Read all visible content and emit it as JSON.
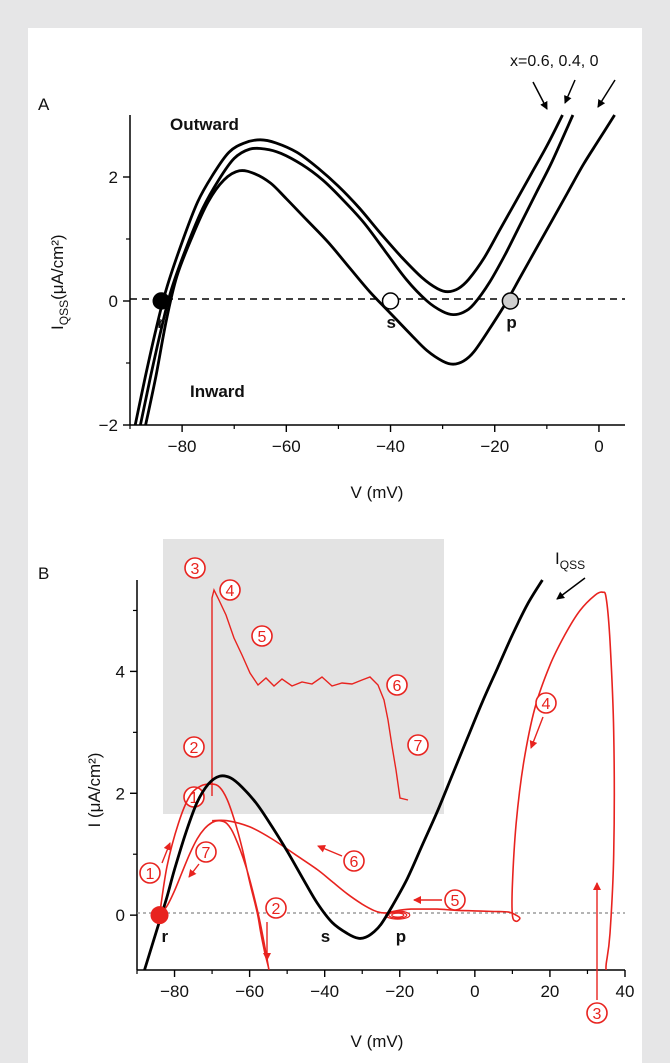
{
  "chart_data": [
    {
      "panel": "A",
      "type": "line",
      "xlabel": "V (mV)",
      "ylabel_main": "I",
      "ylabel_sub": "QSS",
      "ylabel_units": "(μA/cm²)",
      "xlim": [
        -90,
        5
      ],
      "ylim": [
        -2,
        3
      ],
      "x_ticks": [
        -80,
        -60,
        -40,
        -20,
        0
      ],
      "x_tick_labels": [
        "−80",
        "−60",
        "−40",
        "−20",
        "0"
      ],
      "y_ticks": [
        -2,
        0,
        2
      ],
      "y_tick_labels": [
        "−2",
        "0",
        "2"
      ],
      "legend_text": "x=0.6, 0.4, 0",
      "annotations": {
        "outward": "Outward",
        "inward": "Inward"
      },
      "series": [
        {
          "x": [
            -89,
            -87,
            -85,
            -83,
            -80,
            -77,
            -74,
            -71,
            -68,
            -65,
            -62,
            -58,
            -54,
            -50,
            -46,
            -42,
            -38,
            -34,
            -31,
            -29,
            -27,
            -25,
            -22,
            -19,
            -16,
            -13,
            -10,
            -7
          ],
          "y": [
            -2,
            -1.2,
            -0.45,
            0.2,
            0.95,
            1.6,
            2.05,
            2.4,
            2.55,
            2.6,
            2.55,
            2.4,
            2.15,
            1.85,
            1.5,
            1.1,
            0.72,
            0.38,
            0.2,
            0.15,
            0.2,
            0.35,
            0.7,
            1.15,
            1.6,
            2.05,
            2.5,
            3.0
          ]
        },
        {
          "x": [
            -88,
            -86,
            -84,
            -82,
            -79,
            -76,
            -73,
            -70,
            -67,
            -64,
            -61,
            -57,
            -53,
            -49,
            -45,
            -41,
            -37,
            -33,
            -30,
            -28,
            -26,
            -24,
            -21,
            -18,
            -15,
            -12,
            -9,
            -5
          ],
          "y": [
            -2,
            -1.2,
            -0.45,
            0.2,
            0.9,
            1.5,
            1.95,
            2.3,
            2.45,
            2.45,
            2.38,
            2.2,
            1.95,
            1.62,
            1.25,
            0.8,
            0.35,
            0.0,
            -0.17,
            -0.22,
            -0.18,
            -0.05,
            0.3,
            0.75,
            1.25,
            1.75,
            2.25,
            3.0
          ]
        },
        {
          "x": [
            -87,
            -85,
            -83,
            -81,
            -78,
            -75,
            -72,
            -69,
            -66,
            -63,
            -60,
            -56,
            -52,
            -48,
            -44,
            -40,
            -36,
            -33,
            -30,
            -28,
            -26,
            -24,
            -21,
            -18,
            -15,
            -12,
            -9,
            -6,
            -3,
            0,
            3
          ],
          "y": [
            -2,
            -1.2,
            -0.3,
            0.4,
            1.05,
            1.6,
            1.95,
            2.1,
            2.05,
            1.9,
            1.65,
            1.3,
            0.95,
            0.55,
            0.15,
            -0.2,
            -0.55,
            -0.8,
            -0.97,
            -1.02,
            -0.97,
            -0.82,
            -0.45,
            -0.05,
            0.4,
            0.85,
            1.3,
            1.75,
            2.2,
            2.6,
            3.0
          ]
        }
      ],
      "points": [
        {
          "label": "r",
          "x": -84,
          "y": 0,
          "fill": "#000000"
        },
        {
          "label": "s",
          "x": -40,
          "y": 0,
          "fill": "#ffffff"
        },
        {
          "label": "p",
          "x": -17,
          "y": 0,
          "fill": "#cfcfcf"
        }
      ]
    },
    {
      "panel": "B",
      "type": "line",
      "xlabel": "V (mV)",
      "ylabel": "I (μA/cm²)",
      "xlim": [
        -90,
        40
      ],
      "ylim": [
        -0.9,
        5.5
      ],
      "x_ticks": [
        -80,
        -60,
        -40,
        -20,
        0,
        20,
        40
      ],
      "x_tick_labels": [
        "−80",
        "−60",
        "−40",
        "−20",
        "0",
        "20",
        "40"
      ],
      "y_ticks": [
        0,
        2,
        4
      ],
      "y_tick_labels": [
        "0",
        "2",
        "4"
      ],
      "curve_label_main": "I",
      "curve_label_sub": "QSS",
      "iqss": {
        "x": [
          -88,
          -86,
          -84,
          -82,
          -80,
          -77,
          -74,
          -71,
          -68,
          -65,
          -62,
          -58,
          -54,
          -50,
          -46,
          -42,
          -38,
          -34,
          -31,
          -29,
          -27,
          -25,
          -22,
          -18,
          -14,
          -10,
          -6,
          -2,
          2,
          6,
          10,
          14,
          18
        ],
        "y": [
          -0.9,
          -0.5,
          -0.1,
          0.3,
          0.75,
          1.35,
          1.85,
          2.15,
          2.28,
          2.25,
          2.1,
          1.82,
          1.45,
          1.05,
          0.62,
          0.2,
          -0.12,
          -0.3,
          -0.38,
          -0.36,
          -0.28,
          -0.15,
          0.15,
          0.6,
          1.15,
          1.7,
          2.3,
          2.9,
          3.5,
          4.05,
          4.6,
          5.1,
          5.5
        ]
      },
      "trajectory": {
        "x": [
          -84,
          -82,
          -79,
          -76,
          -73,
          -70,
          -68,
          -66,
          -64,
          -62,
          -60,
          -58,
          -57,
          -56,
          -55,
          -55,
          -56,
          -58,
          -61,
          -64,
          -66,
          -68,
          -70,
          -72,
          -74,
          -76,
          -78,
          -80,
          -82,
          -84
        ],
        "y": [
          0,
          0.8,
          1.5,
          1.95,
          2.12,
          2.15,
          2.1,
          1.9,
          1.55,
          1.1,
          0.55,
          0.05,
          -0.3,
          -0.6,
          -0.85,
          -0.85,
          -0.5,
          0.1,
          0.8,
          1.3,
          1.5,
          1.55,
          1.52,
          1.42,
          1.25,
          1.0,
          0.7,
          0.4,
          0.15,
          0
        ]
      },
      "trajectory2": {
        "x": [
          -70,
          -66,
          -60,
          -54,
          -48,
          -42,
          -38,
          -34,
          -30,
          -27,
          -25,
          -23,
          -21,
          -19,
          -17,
          -15,
          -10,
          -5,
          0,
          5,
          9,
          11,
          12,
          11,
          10,
          10,
          11,
          13,
          16,
          20,
          24,
          28,
          32,
          34,
          35,
          36,
          37,
          37,
          36,
          35,
          35
        ],
        "y": [
          1.55,
          1.55,
          1.45,
          1.25,
          1.0,
          0.75,
          0.55,
          0.35,
          0.18,
          0.08,
          0.04,
          0.04,
          0.07,
          0.09,
          0.1,
          0.1,
          0.1,
          0.08,
          0.07,
          0.06,
          0.05,
          0.0,
          -0.05,
          -0.1,
          0.0,
          0.5,
          1.5,
          2.5,
          3.4,
          4.1,
          4.6,
          5.0,
          5.25,
          5.3,
          5.2,
          4.5,
          3.0,
          1.0,
          -0.3,
          -0.8,
          -0.9
        ]
      },
      "points": [
        {
          "label": "r",
          "x": -84,
          "y": 0,
          "fill": "#e8231f"
        },
        {
          "label": "s",
          "x": -40,
          "y": 0
        },
        {
          "label": "p",
          "x": -20,
          "y": 0
        }
      ],
      "markers": [
        "1",
        "2",
        "3",
        "4",
        "5",
        "6",
        "7"
      ],
      "inset_markers": [
        "3",
        "4",
        "5",
        "6",
        "2",
        "7",
        "1"
      ],
      "colors": {
        "trajectory": "#e8231f",
        "iqss": "#000000",
        "inset_bg": "#e3e3e3"
      }
    }
  ]
}
